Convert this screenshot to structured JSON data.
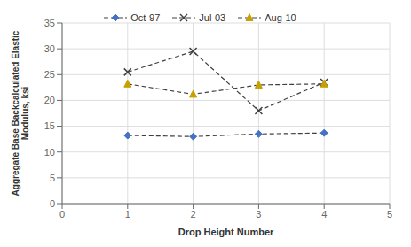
{
  "chart_data": {
    "type": "line",
    "x": [
      1,
      2,
      3,
      4
    ],
    "series": [
      {
        "name": "Oct-97",
        "color": "#4472C4",
        "values": [
          13.2,
          13.0,
          13.5,
          13.7
        ],
        "marker": "diamond",
        "line_style": "dashed"
      },
      {
        "name": "Jul-03",
        "color": "#404040",
        "values": [
          25.5,
          29.5,
          18.0,
          23.5
        ],
        "marker": "x",
        "line_style": "dashed"
      },
      {
        "name": "Aug-10",
        "color": "#C8A000",
        "values": [
          23.2,
          21.2,
          23.0,
          23.2
        ],
        "marker": "triangle",
        "line_style": "dashed"
      }
    ],
    "color": "#404040",
    "xlabel": "Drop Height Number",
    "ylabel": "Aggregate Base Backcalculated Elastic\nModulus, ksi",
    "xlim": [
      0,
      5
    ],
    "ylim": [
      0,
      35
    ],
    "xticks": [
      0,
      1,
      2,
      3,
      4,
      5
    ],
    "yticks": [
      0,
      5,
      10,
      15,
      20,
      25,
      30,
      35
    ],
    "grid": true,
    "legend": "top"
  }
}
